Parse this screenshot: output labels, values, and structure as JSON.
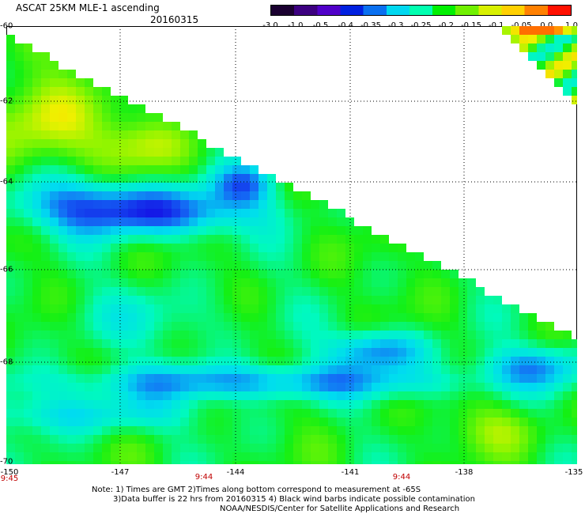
{
  "header": {
    "title": "ASCAT 25KM MLE-1 ascending",
    "date": "20160315"
  },
  "colorbar": {
    "labels": [
      "-3.0",
      "-1.0",
      "-0.5",
      "-0.4",
      "-0.35",
      "-0.3",
      "-0.25",
      "-0.2",
      "-0.15",
      "-0.1",
      "-0.05",
      "0.0",
      "1.0"
    ],
    "colors": [
      "#1a0030",
      "#3c0080",
      "#5000c8",
      "#0020e0",
      "#0a70f0",
      "#00d8f0",
      "#00ffb0",
      "#00f000",
      "#70f000",
      "#d8f000",
      "#ffd000",
      "#ff8000",
      "#ff1000"
    ]
  },
  "map": {
    "lat_labels": [
      "-60",
      "-62",
      "-64",
      "-66",
      "-68",
      "-70"
    ],
    "lon_labels": [
      "-150",
      "-147",
      "-144",
      "-141",
      "-138",
      "-135"
    ],
    "time_labels": [
      "9:45",
      "9:44",
      "9:44"
    ]
  },
  "notes": {
    "line1": "Note: 1) Times are GMT 2)Times along bottom correspond to measurement at -65S",
    "line2": "3)Data buffer is 22 hrs from 20160315 4) Black wind barbs indicate possible contamination",
    "line3": "NOAA/NESDIS/Center for Satellite Applications and Research"
  }
}
